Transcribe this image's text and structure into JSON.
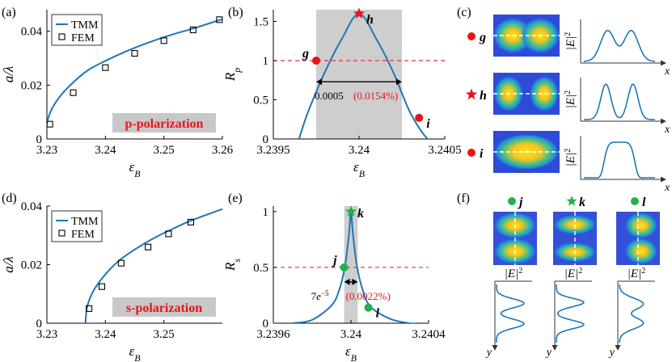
{
  "colors": {
    "curve": "#1f77b4",
    "dashed": "#e8303a",
    "red_marker": "#e8141c",
    "green_marker": "#22b14c",
    "shade": "#bdbdbd",
    "label_box": "#c8c8c8",
    "label_text": "#e8141c",
    "percent_text": "#e8141c"
  },
  "chart_data": [
    {
      "panel": "(a)",
      "type": "line",
      "xlabel": "ε_B",
      "ylabel": "a/λ",
      "xlim": [
        3.23,
        3.26
      ],
      "ylim": [
        0,
        0.048
      ],
      "xticks": [
        "3.23",
        "3.24",
        "3.25",
        "3.26"
      ],
      "yticks": [
        "0",
        "0.02",
        "0.04"
      ],
      "legend": [
        "TMM",
        "FEM"
      ],
      "legend_position": "top-left",
      "box_label": "p-polarization",
      "series": [
        {
          "name": "TMM",
          "style": "line",
          "x": [
            3.2297,
            3.2298,
            3.2302,
            3.231,
            3.2325,
            3.2345,
            3.237,
            3.24,
            3.2435,
            3.247,
            3.251,
            3.255,
            3.26
          ],
          "y": [
            0.0,
            0.003,
            0.0075,
            0.0118,
            0.0165,
            0.021,
            0.0255,
            0.029,
            0.0325,
            0.0355,
            0.0385,
            0.041,
            0.0445
          ]
        },
        {
          "name": "FEM",
          "style": "square",
          "x": [
            3.2305,
            3.2345,
            3.24,
            3.245,
            3.25,
            3.255,
            3.2595
          ],
          "y": [
            0.0055,
            0.0172,
            0.0265,
            0.0318,
            0.0365,
            0.0405,
            0.0443
          ]
        }
      ]
    },
    {
      "panel": "(b)",
      "type": "line",
      "xlabel": "ε_B",
      "ylabel": "R_p",
      "xlim": [
        3.2395,
        3.2405
      ],
      "ylim": [
        0,
        1.65
      ],
      "xticks": [
        "3.2395",
        "3.24",
        "3.2405"
      ],
      "yticks": [
        "0",
        "0.5",
        "1",
        "1.5"
      ],
      "reference_line": 1,
      "shaded_range": [
        3.23975,
        3.24025
      ],
      "width_annotation": "0.0005",
      "percent_annotation": "(0.0154%)",
      "series": [
        {
          "name": "",
          "style": "line",
          "x": [
            3.23965,
            3.2397,
            3.2398,
            3.2399,
            3.24,
            3.2401,
            3.2402,
            3.2403,
            3.2404,
            3.24045
          ],
          "y": [
            0.0,
            0.33,
            0.85,
            1.28,
            1.6,
            1.28,
            0.85,
            0.33,
            0.0,
            0.0
          ]
        }
      ],
      "points": [
        {
          "label": "g",
          "x": 3.23975,
          "y": 1.0,
          "marker": "circle",
          "color": "red"
        },
        {
          "label": "h",
          "x": 3.24,
          "y": 1.6,
          "marker": "star",
          "color": "red"
        },
        {
          "label": "i",
          "x": 3.24035,
          "y": 0.27,
          "marker": "circle",
          "color": "red"
        }
      ]
    },
    {
      "panel": "(c)",
      "type": "line",
      "ylabel": "|E|^2",
      "xlabel": "x",
      "rows": [
        {
          "label": "g",
          "marker": "circle",
          "profile": "double_peak_shallow"
        },
        {
          "label": "h",
          "marker": "star",
          "profile": "double_peak_deep"
        },
        {
          "label": "i",
          "marker": "circle",
          "profile": "flat_top"
        }
      ]
    },
    {
      "panel": "(d)",
      "type": "line",
      "xlabel": "ε_B",
      "ylabel": "a/λ",
      "xlim": [
        3.23,
        3.26
      ],
      "ylim": [
        0,
        0.04
      ],
      "xticks": [
        "3.23",
        "3.24",
        "3.25"
      ],
      "yticks": [
        "0",
        "0.02",
        "0.04"
      ],
      "legend": [
        "TMM",
        "FEM"
      ],
      "legend_position": "top-left",
      "box_label": "s-polarization",
      "series": [
        {
          "name": "TMM",
          "style": "line",
          "x": [
            3.2366,
            3.2367,
            3.237,
            3.2378,
            3.239,
            3.2405,
            3.242,
            3.244,
            3.2465,
            3.249,
            3.2515,
            3.254,
            3.257,
            3.26
          ],
          "y": [
            0.0,
            0.003,
            0.0065,
            0.0105,
            0.0142,
            0.0178,
            0.0208,
            0.0238,
            0.027,
            0.0298,
            0.0322,
            0.0345,
            0.0368,
            0.039
          ]
        },
        {
          "name": "FEM",
          "style": "square",
          "x": [
            3.2372,
            3.2394,
            3.2427,
            3.2473,
            3.2508,
            3.2546
          ],
          "y": [
            0.005,
            0.0125,
            0.0205,
            0.026,
            0.0305,
            0.0345
          ]
        }
      ]
    },
    {
      "panel": "(e)",
      "type": "line",
      "xlabel": "ε_B",
      "ylabel": "R_s",
      "xlim": [
        3.2396,
        3.2404
      ],
      "ylim": [
        0,
        1.05
      ],
      "xticks": [
        "3.2396",
        "3.24",
        "3.2404"
      ],
      "yticks": [
        "0",
        "0.5",
        "1"
      ],
      "reference_line": 0.5,
      "shaded_range": [
        3.239965,
        3.240035
      ],
      "width_annotation": "7e^{-5}",
      "percent_annotation": "(0.0022%)",
      "series": [
        {
          "name": "",
          "style": "line",
          "x": [
            3.2397,
            3.2398,
            3.2399,
            3.23994,
            3.23997,
            3.23999,
            3.24,
            3.24001,
            3.24003,
            3.24006,
            3.2401,
            3.2402,
            3.2403,
            3.24035
          ],
          "y": [
            0.0,
            0.03,
            0.16,
            0.3,
            0.52,
            0.8,
            1.0,
            0.8,
            0.52,
            0.3,
            0.15,
            0.04,
            0.0,
            0.0
          ]
        }
      ],
      "points": [
        {
          "label": "j",
          "x": 3.239965,
          "y": 0.5,
          "marker": "circle",
          "color": "green"
        },
        {
          "label": "k",
          "x": 3.24,
          "y": 1.0,
          "marker": "star",
          "color": "green"
        },
        {
          "label": "l",
          "x": 3.24009,
          "y": 0.14,
          "marker": "circle",
          "color": "green"
        }
      ]
    },
    {
      "panel": "(f)",
      "type": "line",
      "xlabel": "|E|^2",
      "ylabel": "y",
      "columns": [
        {
          "label": "j",
          "marker": "circle",
          "profile": "double_peak"
        },
        {
          "label": "k",
          "marker": "star",
          "profile": "double_peak_deep"
        },
        {
          "label": "l",
          "marker": "circle",
          "profile": "double_peak_shallow"
        }
      ]
    }
  ],
  "panel_labels": {
    "a": "(a)",
    "b": "(b)",
    "c": "(c)",
    "d": "(d)",
    "e": "(e)",
    "f": "(f)"
  },
  "legend_text": {
    "tmm": "TMM",
    "fem": "FEM"
  },
  "axis_text": {
    "eps": "ε",
    "eps_sub": "B",
    "a_over_lambda": "a/λ",
    "R": "R",
    "p": "p",
    "s": "s",
    "E2": "|E|",
    "sq": "2",
    "x": "x",
    "y": "y"
  },
  "box_labels": {
    "p": "p-polarization",
    "s": "s-polarization"
  }
}
